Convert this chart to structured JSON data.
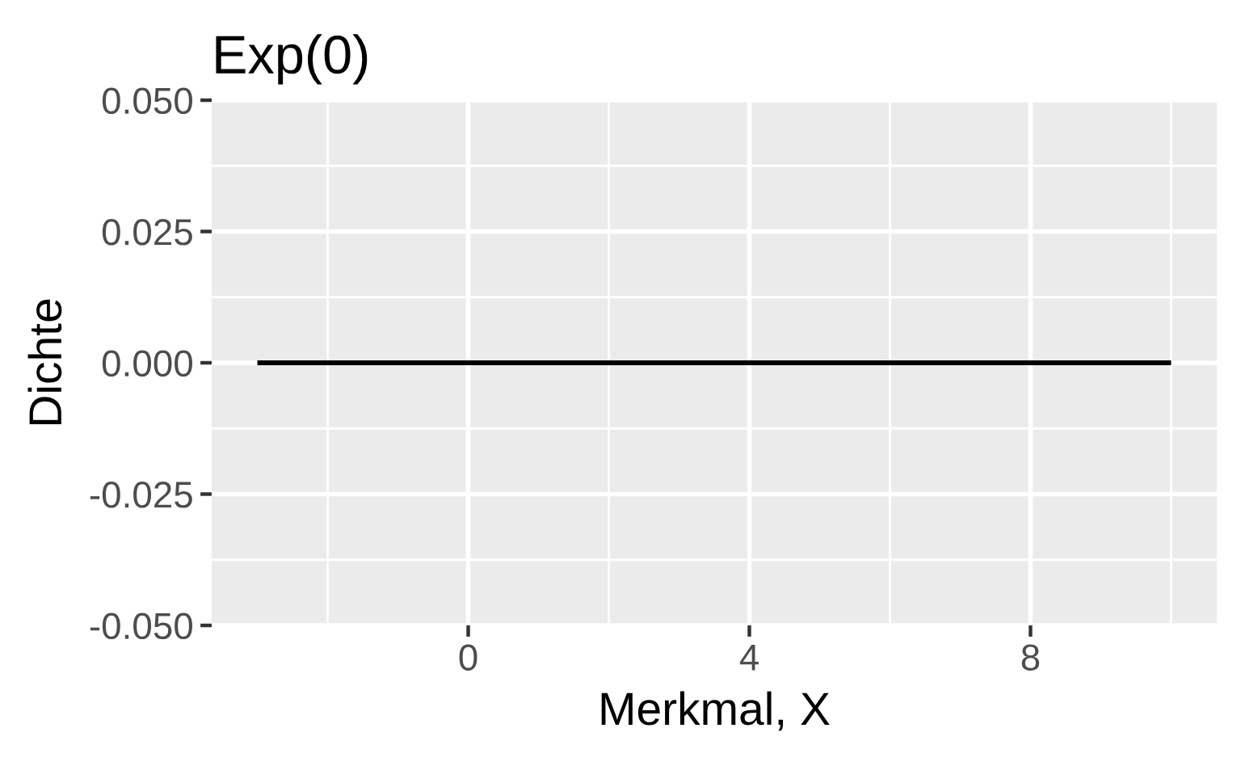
{
  "chart_data": {
    "type": "line",
    "title": "Exp(0)",
    "xlabel": "Merkmal, X",
    "ylabel": "Dichte",
    "x": [
      -3,
      10
    ],
    "series": [
      {
        "color": "#000000",
        "values": [
          0,
          0
        ]
      }
    ],
    "xlim": [
      -3.65,
      10.65
    ],
    "xticks": [
      0,
      4,
      8
    ],
    "ylim": [
      -0.05,
      0.05
    ],
    "yticks": [
      {
        "value": -0.05,
        "label": "-0.050"
      },
      -0.025,
      {
        "value": 0,
        "label": "0.000"
      },
      0.025,
      {
        "value": 0.05,
        "label": "0.050"
      }
    ],
    "grid": true,
    "line_style": "solid",
    "marker": "none"
  }
}
